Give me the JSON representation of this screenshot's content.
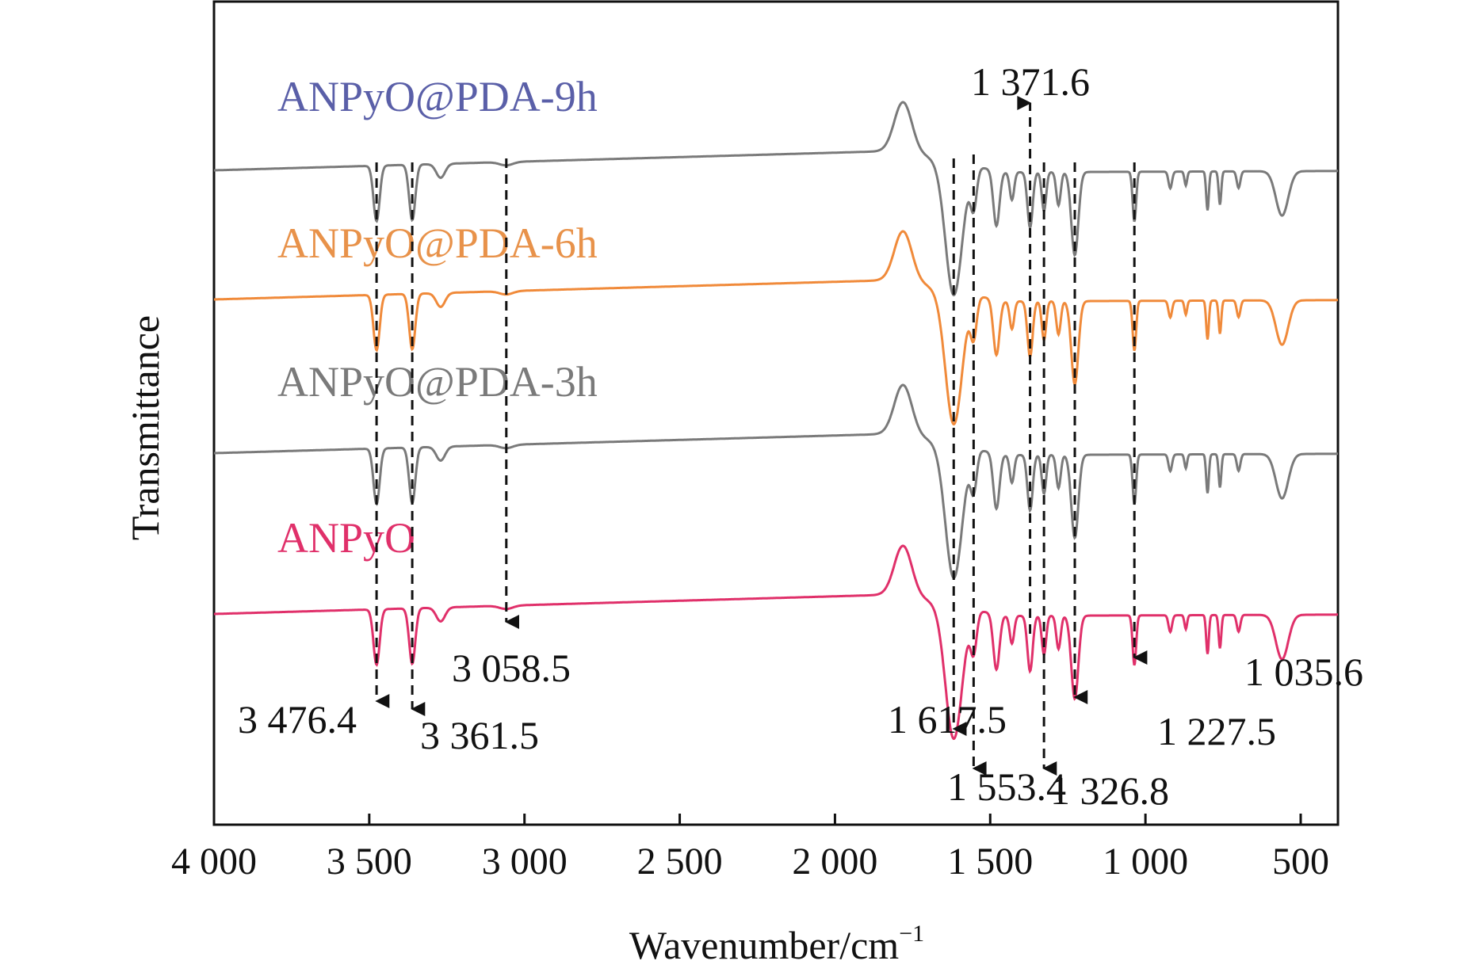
{
  "chart_data": {
    "type": "line",
    "title": "",
    "xlabel": "Wavenumber/cm",
    "xlabel_superscript": "−1",
    "ylabel": "Transmittance",
    "xlim": [
      4000,
      380
    ],
    "x_reversed": true,
    "x_ticks": [
      4000,
      3500,
      3000,
      2500,
      2000,
      1500,
      1000,
      500
    ],
    "x_tick_labels": [
      "4 000",
      "3 500",
      "3 000",
      "2 500",
      "2 000",
      "1 500",
      "1 000",
      "500"
    ],
    "y_ticks_shown": false,
    "grid": false,
    "offset_stacked": true,
    "series": [
      {
        "name": "ANPyO@PDA-9h",
        "color": "#5a5fa8",
        "trace_color": "#7a7a7a",
        "baseline_offset": 3
      },
      {
        "name": "ANPyO@PDA-6h",
        "color": "#e8924a",
        "trace_color": "#f08a3a",
        "baseline_offset": 2
      },
      {
        "name": "ANPyO@PDA-3h",
        "color": "#7a7a7a",
        "trace_color": "#7a7a7a",
        "baseline_offset": 1
      },
      {
        "name": "ANPyO",
        "color": "#e0306a",
        "trace_color": "#e0306a",
        "baseline_offset": 0
      }
    ],
    "bands": [
      {
        "x": 3476.4,
        "depth": 1.0,
        "width": 14
      },
      {
        "x": 3361.5,
        "depth": 1.0,
        "width": 14
      },
      {
        "x": 3270,
        "depth": 0.25,
        "width": 20
      },
      {
        "x": 3058.5,
        "depth": 0.06,
        "width": 30
      },
      {
        "x": 1617.5,
        "depth": 2.4,
        "width": 38
      },
      {
        "x": 1553.4,
        "depth": 0.7,
        "width": 14
      },
      {
        "x": 1480,
        "depth": 1.0,
        "width": 14
      },
      {
        "x": 1430,
        "depth": 0.5,
        "width": 10
      },
      {
        "x": 1371.6,
        "depth": 1.0,
        "width": 12
      },
      {
        "x": 1326.8,
        "depth": 0.7,
        "width": 10
      },
      {
        "x": 1280,
        "depth": 0.6,
        "width": 10
      },
      {
        "x": 1227.5,
        "depth": 1.5,
        "width": 16
      },
      {
        "x": 1035.6,
        "depth": 0.9,
        "width": 8
      },
      {
        "x": 920,
        "depth": 0.3,
        "width": 8
      },
      {
        "x": 870,
        "depth": 0.25,
        "width": 6
      },
      {
        "x": 800,
        "depth": 0.7,
        "width": 6
      },
      {
        "x": 760,
        "depth": 0.6,
        "width": 6
      },
      {
        "x": 700,
        "depth": 0.3,
        "width": 8
      },
      {
        "x": 560,
        "depth": 0.8,
        "width": 28
      }
    ],
    "annotations": [
      {
        "x": 3476.4,
        "label": "3 476.4",
        "direction": "down"
      },
      {
        "x": 3361.5,
        "label": "3 361.5",
        "direction": "down"
      },
      {
        "x": 3058.5,
        "label": "3 058.5",
        "direction": "down"
      },
      {
        "x": 1617.5,
        "label": "1 617.5",
        "direction": "down"
      },
      {
        "x": 1553.4,
        "label": "1 553.4",
        "direction": "down"
      },
      {
        "x": 1371.6,
        "label": "1 371.6",
        "direction": "up"
      },
      {
        "x": 1326.8,
        "label": "1 326.8",
        "direction": "down"
      },
      {
        "x": 1227.5,
        "label": "1 227.5",
        "direction": "down"
      },
      {
        "x": 1035.6,
        "label": "1 035.6",
        "direction": "down"
      }
    ]
  }
}
